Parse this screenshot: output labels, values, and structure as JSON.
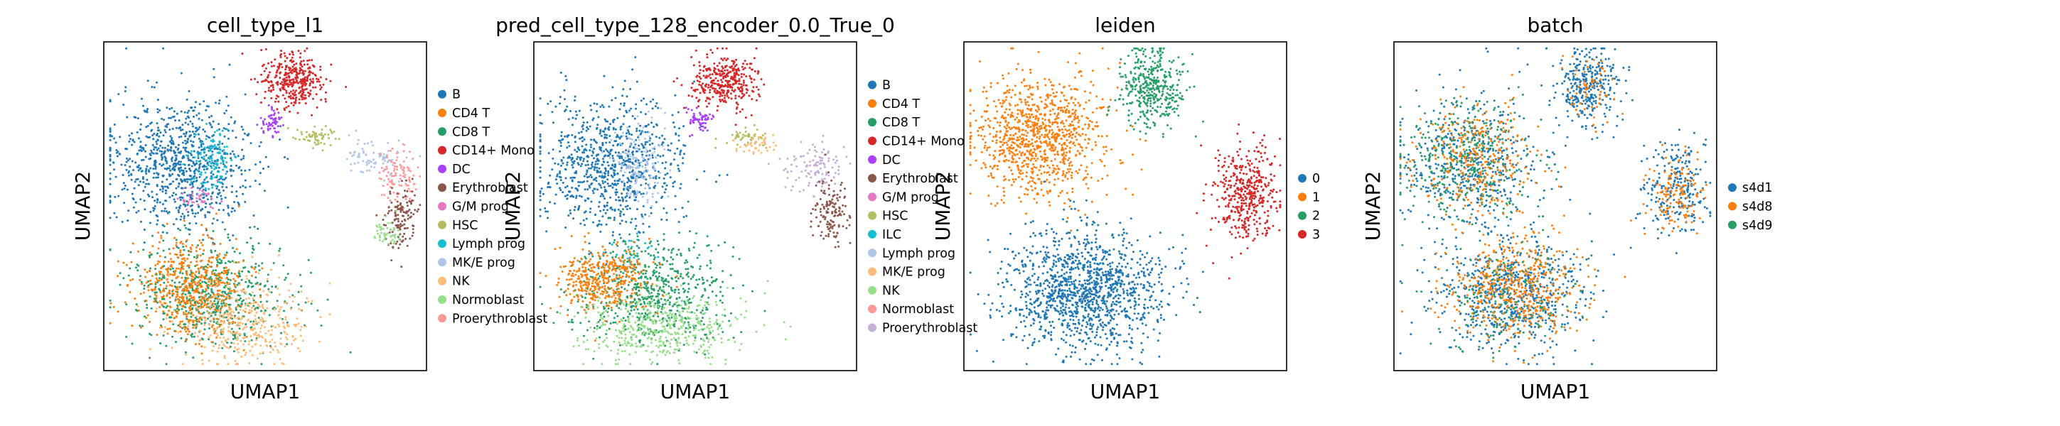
{
  "figure": {
    "panels": [
      {
        "id": "cell_type_l1",
        "title": "cell_type_l1",
        "xlabel": "UMAP1",
        "ylabel": "UMAP2",
        "legend": {
          "placement": "right-outside",
          "entries": [
            {
              "label": "B",
              "color": "#1f77b4"
            },
            {
              "label": "CD4 T",
              "color": "#ff7f0e"
            },
            {
              "label": "CD8 T",
              "color": "#279e68"
            },
            {
              "label": "CD14+ Mono",
              "color": "#d62728"
            },
            {
              "label": "DC",
              "color": "#aa40fc"
            },
            {
              "label": "Erythroblast",
              "color": "#8c564b"
            },
            {
              "label": "G/M prog",
              "color": "#e377c2"
            },
            {
              "label": "HSC",
              "color": "#b5bd61"
            },
            {
              "label": "Lymph prog",
              "color": "#17becf"
            },
            {
              "label": "MK/E prog",
              "color": "#aec7e8"
            },
            {
              "label": "NK",
              "color": "#ffbb78"
            },
            {
              "label": "Normoblast",
              "color": "#98df8a"
            },
            {
              "label": "Proerythroblast",
              "color": "#ff9896"
            }
          ]
        }
      },
      {
        "id": "pred_cell_type",
        "title": "pred_cell_type_128_encoder_0.0_True_0",
        "xlabel": "UMAP1",
        "ylabel": "UMAP2",
        "legend": {
          "placement": "right-outside",
          "entries": [
            {
              "label": "B",
              "color": "#1f77b4"
            },
            {
              "label": "CD4 T",
              "color": "#ff7f0e"
            },
            {
              "label": "CD8 T",
              "color": "#279e68"
            },
            {
              "label": "CD14+ Mono",
              "color": "#d62728"
            },
            {
              "label": "DC",
              "color": "#aa40fc"
            },
            {
              "label": "Erythroblast",
              "color": "#8c564b"
            },
            {
              "label": "G/M prog",
              "color": "#e377c2"
            },
            {
              "label": "HSC",
              "color": "#b5bd61"
            },
            {
              "label": "ILC",
              "color": "#17becf"
            },
            {
              "label": "Lymph prog",
              "color": "#aec7e8"
            },
            {
              "label": "MK/E prog",
              "color": "#ffbb78"
            },
            {
              "label": "NK",
              "color": "#98df8a"
            },
            {
              "label": "Normoblast",
              "color": "#ff9896"
            },
            {
              "label": "Proerythroblast",
              "color": "#c5b0d5"
            }
          ]
        }
      },
      {
        "id": "leiden",
        "title": "leiden",
        "xlabel": "UMAP1",
        "ylabel": "UMAP2",
        "legend": {
          "placement": "right-outside",
          "entries": [
            {
              "label": "0",
              "color": "#1f77b4"
            },
            {
              "label": "1",
              "color": "#ff7f0e"
            },
            {
              "label": "2",
              "color": "#279e68"
            },
            {
              "label": "3",
              "color": "#d62728"
            }
          ]
        }
      },
      {
        "id": "batch",
        "title": "batch",
        "xlabel": "UMAP1",
        "ylabel": "UMAP2",
        "legend": {
          "placement": "right-outside",
          "entries": [
            {
              "label": "s4d1",
              "color": "#1f77b4"
            },
            {
              "label": "s4d8",
              "color": "#ff7f0e"
            },
            {
              "label": "s4d9",
              "color": "#279e68"
            }
          ]
        }
      }
    ]
  },
  "chart_data": [
    {
      "type": "scatter",
      "title": "cell_type_l1",
      "xlabel": "UMAP1",
      "ylabel": "UMAP2",
      "ticks": "none",
      "grid": false,
      "legend_placement": "right-outside",
      "clusters": [
        {
          "name": "B",
          "color": "#1f77b4",
          "cx": 0.24,
          "cy": 0.37,
          "sx": 0.11,
          "sy": 0.1,
          "n": 900
        },
        {
          "name": "Lymph prog",
          "color": "#17becf",
          "cx": 0.34,
          "cy": 0.36,
          "sx": 0.03,
          "sy": 0.05,
          "n": 120
        },
        {
          "name": "CD14+ Mono",
          "color": "#d62728",
          "cx": 0.59,
          "cy": 0.12,
          "sx": 0.05,
          "sy": 0.04,
          "n": 350
        },
        {
          "name": "DC",
          "color": "#aa40fc",
          "cx": 0.52,
          "cy": 0.24,
          "sx": 0.02,
          "sy": 0.02,
          "n": 60
        },
        {
          "name": "G/M prog",
          "color": "#e377c2",
          "cx": 0.29,
          "cy": 0.48,
          "sx": 0.03,
          "sy": 0.02,
          "n": 40
        },
        {
          "name": "HSC",
          "color": "#b5bd61",
          "cx": 0.66,
          "cy": 0.29,
          "sx": 0.03,
          "sy": 0.015,
          "n": 60
        },
        {
          "name": "MK/E prog",
          "color": "#aec7e8",
          "cx": 0.84,
          "cy": 0.35,
          "sx": 0.05,
          "sy": 0.03,
          "n": 80
        },
        {
          "name": "Proerythroblast",
          "color": "#ff9896",
          "cx": 0.91,
          "cy": 0.41,
          "sx": 0.03,
          "sy": 0.04,
          "n": 100
        },
        {
          "name": "Erythroblast",
          "color": "#8c564b",
          "cx": 0.92,
          "cy": 0.54,
          "sx": 0.025,
          "sy": 0.05,
          "n": 130
        },
        {
          "name": "Normoblast",
          "color": "#98df8a",
          "cx": 0.88,
          "cy": 0.58,
          "sx": 0.02,
          "sy": 0.025,
          "n": 50
        },
        {
          "name": "CD8 T",
          "color": "#279e68",
          "cx": 0.33,
          "cy": 0.77,
          "sx": 0.12,
          "sy": 0.08,
          "n": 650
        },
        {
          "name": "CD4 T",
          "color": "#ff7f0e",
          "cx": 0.27,
          "cy": 0.74,
          "sx": 0.09,
          "sy": 0.07,
          "n": 550
        },
        {
          "name": "NK",
          "color": "#ffbb78",
          "cx": 0.44,
          "cy": 0.86,
          "sx": 0.1,
          "sy": 0.06,
          "n": 350
        }
      ]
    },
    {
      "type": "scatter",
      "title": "pred_cell_type_128_encoder_0.0_True_0",
      "xlabel": "UMAP1",
      "ylabel": "UMAP2",
      "ticks": "none",
      "grid": false,
      "legend_placement": "right-outside",
      "clusters": [
        {
          "name": "B",
          "color": "#1f77b4",
          "cx": 0.24,
          "cy": 0.37,
          "sx": 0.11,
          "sy": 0.1,
          "n": 850
        },
        {
          "name": "Lymph prog",
          "color": "#aec7e8",
          "cx": 0.33,
          "cy": 0.38,
          "sx": 0.04,
          "sy": 0.06,
          "n": 160
        },
        {
          "name": "CD14+ Mono",
          "color": "#d62728",
          "cx": 0.59,
          "cy": 0.12,
          "sx": 0.05,
          "sy": 0.04,
          "n": 350
        },
        {
          "name": "DC",
          "color": "#aa40fc",
          "cx": 0.52,
          "cy": 0.24,
          "sx": 0.02,
          "sy": 0.02,
          "n": 60
        },
        {
          "name": "HSC",
          "color": "#b5bd61",
          "cx": 0.66,
          "cy": 0.29,
          "sx": 0.03,
          "sy": 0.015,
          "n": 50
        },
        {
          "name": "MK/E prog",
          "color": "#ffbb78",
          "cx": 0.7,
          "cy": 0.31,
          "sx": 0.03,
          "sy": 0.02,
          "n": 40
        },
        {
          "name": "Proerythroblast",
          "color": "#c5b0d5",
          "cx": 0.87,
          "cy": 0.38,
          "sx": 0.05,
          "sy": 0.04,
          "n": 110
        },
        {
          "name": "Erythroblast",
          "color": "#8c564b",
          "cx": 0.92,
          "cy": 0.52,
          "sx": 0.025,
          "sy": 0.05,
          "n": 140
        },
        {
          "name": "ILC",
          "color": "#17becf",
          "cx": 0.3,
          "cy": 0.64,
          "sx": 0.03,
          "sy": 0.02,
          "n": 30
        },
        {
          "name": "CD8 T",
          "color": "#279e68",
          "cx": 0.36,
          "cy": 0.76,
          "sx": 0.12,
          "sy": 0.08,
          "n": 650
        },
        {
          "name": "CD4 T",
          "color": "#ff7f0e",
          "cx": 0.22,
          "cy": 0.72,
          "sx": 0.07,
          "sy": 0.05,
          "n": 400
        },
        {
          "name": "NK",
          "color": "#98df8a",
          "cx": 0.4,
          "cy": 0.87,
          "sx": 0.12,
          "sy": 0.05,
          "n": 450
        }
      ]
    },
    {
      "type": "scatter",
      "title": "leiden",
      "xlabel": "UMAP1",
      "ylabel": "UMAP2",
      "ticks": "none",
      "grid": false,
      "legend_placement": "right-outside",
      "clusters": [
        {
          "name": "1",
          "color": "#ff7f0e",
          "cx": 0.24,
          "cy": 0.29,
          "sx": 0.1,
          "sy": 0.09,
          "n": 1000
        },
        {
          "name": "2",
          "color": "#279e68",
          "cx": 0.58,
          "cy": 0.14,
          "sx": 0.05,
          "sy": 0.06,
          "n": 400
        },
        {
          "name": "3",
          "color": "#d62728",
          "cx": 0.88,
          "cy": 0.45,
          "sx": 0.05,
          "sy": 0.07,
          "n": 420
        },
        {
          "name": "0",
          "color": "#1f77b4",
          "cx": 0.38,
          "cy": 0.76,
          "sx": 0.12,
          "sy": 0.09,
          "n": 1300
        }
      ]
    },
    {
      "type": "scatter",
      "title": "batch",
      "xlabel": "UMAP1",
      "ylabel": "UMAP2",
      "ticks": "none",
      "grid": false,
      "legend_placement": "right-outside",
      "clusters": [
        {
          "name": "s4d1",
          "color": "#1f77b4",
          "cx": 0.24,
          "cy": 0.37,
          "sx": 0.11,
          "sy": 0.1,
          "n": 500
        },
        {
          "name": "s4d9",
          "color": "#279e68",
          "cx": 0.22,
          "cy": 0.36,
          "sx": 0.1,
          "sy": 0.09,
          "n": 350
        },
        {
          "name": "s4d8",
          "color": "#ff7f0e",
          "cx": 0.26,
          "cy": 0.35,
          "sx": 0.09,
          "sy": 0.08,
          "n": 300
        },
        {
          "name": "s4d1",
          "color": "#1f77b4",
          "cx": 0.6,
          "cy": 0.13,
          "sx": 0.05,
          "sy": 0.06,
          "n": 320
        },
        {
          "name": "s4d8",
          "color": "#ff7f0e",
          "cx": 0.6,
          "cy": 0.15,
          "sx": 0.04,
          "sy": 0.05,
          "n": 60
        },
        {
          "name": "s4d1",
          "color": "#1f77b4",
          "cx": 0.88,
          "cy": 0.45,
          "sx": 0.05,
          "sy": 0.07,
          "n": 240
        },
        {
          "name": "s4d8",
          "color": "#ff7f0e",
          "cx": 0.88,
          "cy": 0.46,
          "sx": 0.04,
          "sy": 0.06,
          "n": 140
        },
        {
          "name": "s4d1",
          "color": "#1f77b4",
          "cx": 0.36,
          "cy": 0.76,
          "sx": 0.12,
          "sy": 0.09,
          "n": 650
        },
        {
          "name": "s4d8",
          "color": "#ff7f0e",
          "cx": 0.38,
          "cy": 0.74,
          "sx": 0.1,
          "sy": 0.08,
          "n": 550
        },
        {
          "name": "s4d9",
          "color": "#279e68",
          "cx": 0.34,
          "cy": 0.78,
          "sx": 0.11,
          "sy": 0.08,
          "n": 150
        }
      ]
    }
  ]
}
